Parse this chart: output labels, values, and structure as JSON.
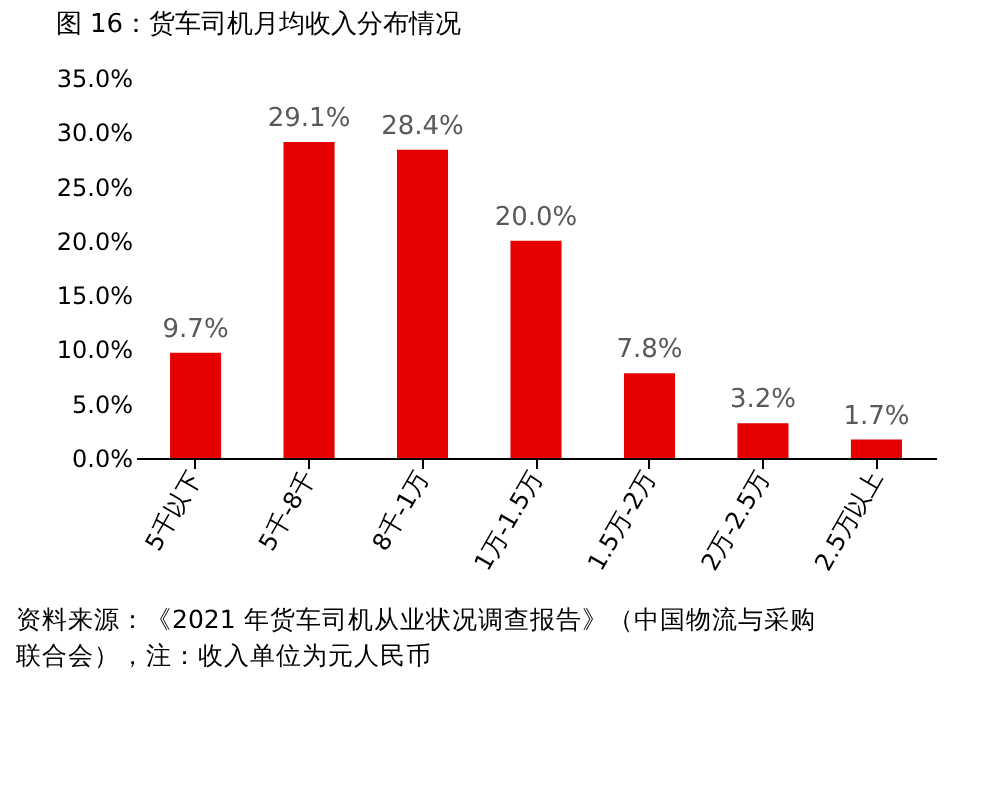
{
  "chart_data": {
    "type": "bar",
    "title": "图 16：货车司机月均收入分布情况",
    "categories": [
      "5千以下",
      "5千-8千",
      "8千-1万",
      "1万-1.5万",
      "1.5万-2万",
      "2万-2.5万",
      "2.5万以上"
    ],
    "values": [
      9.7,
      29.1,
      28.4,
      20.0,
      7.8,
      3.2,
      1.7
    ],
    "value_labels": [
      "9.7%",
      "29.1%",
      "28.4%",
      "20.0%",
      "7.8%",
      "3.2%",
      "1.7%"
    ],
    "color": "#e60000",
    "ylim": [
      0,
      35
    ],
    "yticks": [
      {
        "value": 0,
        "label": "0.0%"
      },
      {
        "value": 5,
        "label": "5.0%"
      },
      {
        "value": 10,
        "label": "10.0%"
      },
      {
        "value": 15,
        "label": "15.0%"
      },
      {
        "value": 20,
        "label": "20.0%"
      },
      {
        "value": 25,
        "label": "25.0%"
      },
      {
        "value": 30,
        "label": "30.0%"
      },
      {
        "value": 35,
        "label": "35.0%"
      }
    ],
    "grid": false,
    "annotations": [
      "资料来源：《2021 年货车司机从业状况调查报告》（中国物流与采购联合会），注：收入单位为元人民币"
    ]
  }
}
